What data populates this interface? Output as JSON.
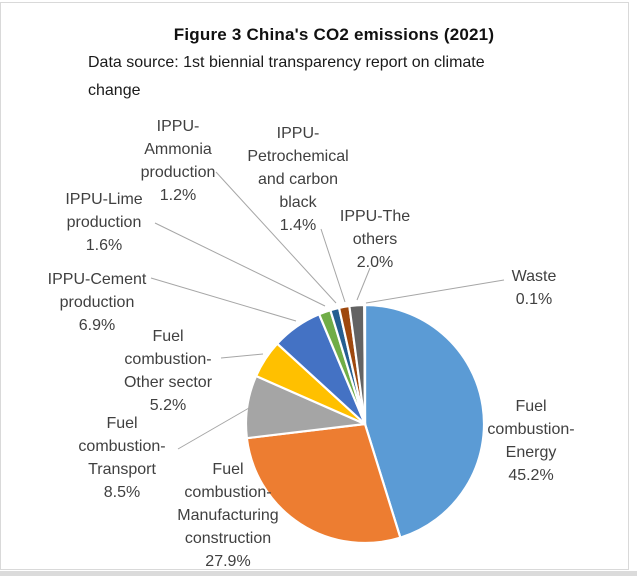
{
  "title": {
    "text": "Figure 3  China's CO2 emissions (2021)",
    "subtitle": "Data source: 1st biennial transparency report on climate\nchange"
  },
  "chart_data": {
    "type": "pie",
    "title": "Figure 3  China's CO2 emissions (2021)",
    "subtitle": "Data source: 1st biennial transparency report on climate change",
    "unit": "percent",
    "direction": "clockwise",
    "start_angle_deg": 0,
    "legend": "none",
    "leader_line_color": "#a6a6a6",
    "slice_border_color": "#ffffff",
    "slices": [
      {
        "label": "Fuel combustion-Energy",
        "value": 45.2,
        "color": "#5B9BD5"
      },
      {
        "label": "Fuel combustion-Manufacturing construction",
        "value": 27.9,
        "color": "#ED7D31"
      },
      {
        "label": "Fuel combustion-Transport",
        "value": 8.5,
        "color": "#A5A5A5"
      },
      {
        "label": "Fuel combustion-Other sector",
        "value": 5.2,
        "color": "#FFC000"
      },
      {
        "label": "IPPU-Cement production",
        "value": 6.9,
        "color": "#4472C4"
      },
      {
        "label": "IPPU-Lime production",
        "value": 1.6,
        "color": "#70AD47"
      },
      {
        "label": "IPPU-Ammonia production",
        "value": 1.2,
        "color": "#255E91"
      },
      {
        "label": "IPPU-Petrochemical and carbon black",
        "value": 1.4,
        "color": "#9E480E"
      },
      {
        "label": "IPPU-The others",
        "value": 2.0,
        "color": "#636363"
      },
      {
        "label": "Waste",
        "value": 0.1,
        "color": "#997300"
      }
    ]
  },
  "labels": [
    {
      "slice": "Fuel combustion-Energy",
      "text": "Fuel\ncombustion-\nEnergy\n45.2%"
    },
    {
      "slice": "Fuel combustion-Manufacturing construction",
      "text": "Fuel\ncombustion-\nManufacturing\nconstruction\n27.9%"
    },
    {
      "slice": "Fuel combustion-Transport",
      "text": "Fuel\ncombustion-\nTransport\n8.5%"
    },
    {
      "slice": "Fuel combustion-Other sector",
      "text": "Fuel\ncombustion-\nOther sector\n5.2%"
    },
    {
      "slice": "IPPU-Cement production",
      "text": "IPPU-Cement\nproduction\n6.9%"
    },
    {
      "slice": "IPPU-Lime production",
      "text": "IPPU-Lime\nproduction\n1.6%"
    },
    {
      "slice": "IPPU-Ammonia production",
      "text": "IPPU-\nAmmonia\nproduction\n1.2%"
    },
    {
      "slice": "IPPU-Petrochemical and carbon black",
      "text": "IPPU-\nPetrochemical\nand carbon\nblack\n1.4%"
    },
    {
      "slice": "IPPU-The others",
      "text": "IPPU-The\nothers\n2.0%"
    },
    {
      "slice": "Waste",
      "text": "Waste\n0.1%"
    }
  ],
  "frame": {
    "border_color": "#d9d9d9",
    "bottom_strip_color": "#dbdbdb"
  }
}
